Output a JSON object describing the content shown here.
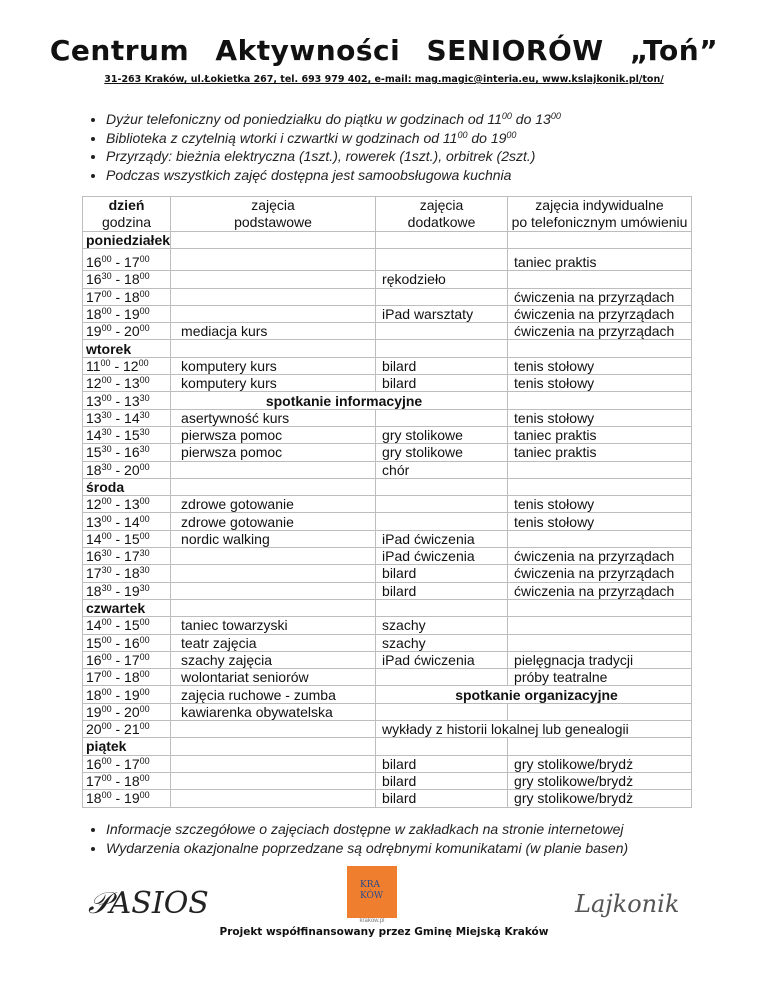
{
  "header": {
    "title": "Centrum Aktywności SENIORÓW „Toń”",
    "address": "31-263 Kraków, ul.Łokietka 267, tel. 693 979 402, e-mail: mag.magic@interia.eu,  www.kslajkonik.pl/ton/"
  },
  "top_notes": [
    {
      "text": "Dyżur telefoniczny od poniedziałku do piątku w godzinach od 11",
      "sup1": "00",
      "mid": " do 13",
      "sup2": "00"
    },
    {
      "text": "Biblioteka z czytelnią wtorki i czwartki w godzinach od 11",
      "sup1": "00",
      "mid": " do 19",
      "sup2": "00"
    },
    {
      "text": "Przyrządy: bieżnia elektryczna (1szt.), rowerek (1szt.), orbitrek (2szt.)"
    },
    {
      "text": "Podczas wszystkich zajęć dostępna jest samoobsługowa kuchnia"
    }
  ],
  "table": {
    "headers": [
      {
        "line1": "dzień",
        "line2": "godzina"
      },
      {
        "line1": "zajęcia",
        "line2": "podstawowe"
      },
      {
        "line1": "zajęcia",
        "line2": "dodatkowe"
      },
      {
        "line1": "zajęcia indywidualne",
        "line2": "po telefonicznym umówieniu"
      }
    ],
    "rows": [
      {
        "day": "poniedziałek"
      },
      {
        "time": [
          "16",
          "00",
          "17",
          "00"
        ],
        "basic": "",
        "extra": "",
        "individual": "taniec praktis",
        "tall": true
      },
      {
        "time": [
          "16",
          "30",
          "18",
          "00"
        ],
        "basic": "",
        "extra": "rękodzieło",
        "individual": ""
      },
      {
        "time": [
          "17",
          "00",
          "18",
          "00"
        ],
        "basic": "",
        "extra": "",
        "individual": "ćwiczenia na przyrządach"
      },
      {
        "time": [
          "18",
          "00",
          "19",
          "00"
        ],
        "basic": "",
        "extra": "iPad warsztaty",
        "individual": "ćwiczenia na przyrządach"
      },
      {
        "time": [
          "19",
          "00",
          "20",
          "00"
        ],
        "basic": "mediacja kurs",
        "extra": "",
        "individual": "ćwiczenia na przyrządach"
      },
      {
        "day": "wtorek"
      },
      {
        "time": [
          "11",
          "00",
          "12",
          "00"
        ],
        "basic": "komputery kurs",
        "extra": "bilard",
        "individual": "tenis stołowy"
      },
      {
        "time": [
          "12",
          "00",
          "13",
          "00"
        ],
        "basic": "komputery kurs",
        "extra": "bilard",
        "individual": "tenis stołowy"
      },
      {
        "time": [
          "13",
          "00",
          "13",
          "30"
        ],
        "span12": "spotkanie informacyjne",
        "individual": ""
      },
      {
        "time": [
          "13",
          "30",
          "14",
          "30"
        ],
        "basic": "asertywność kurs",
        "extra": "",
        "individual": "tenis stołowy"
      },
      {
        "time": [
          "14",
          "30",
          "15",
          "30"
        ],
        "basic": "pierwsza pomoc",
        "extra": "gry stolikowe",
        "individual": "taniec praktis"
      },
      {
        "time": [
          "15",
          "30",
          "16",
          "30"
        ],
        "basic": "pierwsza pomoc",
        "extra": "gry stolikowe",
        "individual": "taniec praktis"
      },
      {
        "time": [
          "18",
          "30",
          "20",
          "00"
        ],
        "basic": "",
        "extra": "chór",
        "individual": ""
      },
      {
        "day": "środa"
      },
      {
        "time": [
          "12",
          "00",
          "13",
          "00"
        ],
        "basic": "zdrowe gotowanie",
        "extra": "",
        "individual": "tenis stołowy"
      },
      {
        "time": [
          "13",
          "00",
          "14",
          "00"
        ],
        "basic": "zdrowe gotowanie",
        "extra": "",
        "individual": "tenis stołowy"
      },
      {
        "time": [
          "14",
          "00",
          "15",
          "00"
        ],
        "basic": "nordic walking",
        "extra": "iPad ćwiczenia",
        "individual": ""
      },
      {
        "time": [
          "16",
          "30",
          "17",
          "30"
        ],
        "basic": "",
        "extra": "iPad ćwiczenia",
        "individual": "ćwiczenia na przyrządach"
      },
      {
        "time": [
          "17",
          "30",
          "18",
          "30"
        ],
        "basic": "",
        "extra": "bilard",
        "individual": "ćwiczenia na przyrządach"
      },
      {
        "time": [
          "18",
          "30",
          "19",
          "30"
        ],
        "basic": "",
        "extra": "bilard",
        "individual": "ćwiczenia na przyrządach"
      },
      {
        "day": "czwartek"
      },
      {
        "time": [
          "14",
          "00",
          "15",
          "00"
        ],
        "basic": "taniec towarzyski",
        "extra": "szachy",
        "individual": ""
      },
      {
        "time": [
          "15",
          "00",
          "16",
          "00"
        ],
        "basic": "teatr zajęcia",
        "extra": "szachy",
        "individual": ""
      },
      {
        "time": [
          "16",
          "00",
          "17",
          "00"
        ],
        "basic": "szachy zajęcia",
        "extra": "iPad ćwiczenia",
        "individual": "pielęgnacja tradycji"
      },
      {
        "time": [
          "17",
          "00",
          "18",
          "00"
        ],
        "basic": "wolontariat seniorów",
        "extra": "",
        "individual": "próby teatralne"
      },
      {
        "time": [
          "18",
          "00",
          "19",
          "00"
        ],
        "basic": "zajęcia ruchowe - zumba",
        "span23": "spotkanie organizacyjne",
        "span23_bold": true
      },
      {
        "time": [
          "19",
          "00",
          "20",
          "00"
        ],
        "basic": "kawiarenka obywatelska",
        "extra": "",
        "individual": ""
      },
      {
        "time": [
          "20",
          "00",
          "21",
          "00"
        ],
        "basic": "",
        "span23": "wykłady z historii lokalnej lub genealogii"
      },
      {
        "day": "piątek"
      },
      {
        "time": [
          "16",
          "00",
          "17",
          "00"
        ],
        "basic": "",
        "extra": "bilard",
        "individual": "gry stolikowe/brydż"
      },
      {
        "time": [
          "17",
          "00",
          "18",
          "00"
        ],
        "basic": "",
        "extra": "bilard",
        "individual": "gry stolikowe/brydż"
      },
      {
        "time": [
          "18",
          "00",
          "19",
          "00"
        ],
        "basic": "",
        "extra": "bilard",
        "individual": "gry stolikowe/brydż"
      }
    ]
  },
  "bottom_notes": [
    {
      "text": "Informacje szczegółowe o zajęciach dostępne w zakładkach na stronie internetowej"
    },
    {
      "text": "Wydarzenia okazjonalne poprzedzane są odrębnymi komunikatami (w planie basen)"
    }
  ],
  "logos": {
    "pasios": "PASIOS",
    "krakow_line1": "KRA",
    "krakow_line2": "KÓW",
    "krakow_url": "krakow.pl",
    "lajkonik": "Lajkonik",
    "krakow_color": "#ef7f2e"
  },
  "footer": "Projekt współfinansowany przez Gminę Miejską Kraków"
}
